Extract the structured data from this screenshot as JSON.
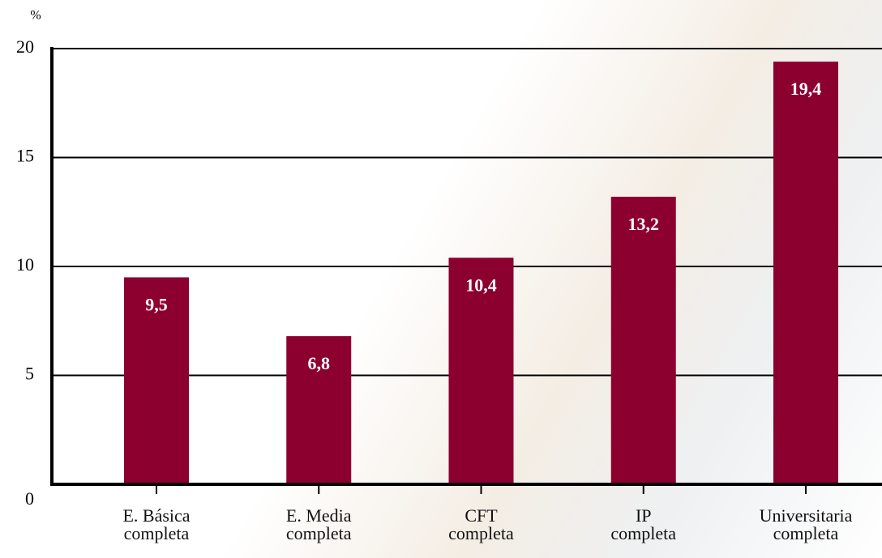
{
  "chart_data": {
    "type": "bar",
    "y_label": "%",
    "categories": [
      "E. Básica\ncompleta",
      "E. Media\ncompleta",
      "CFT\ncompleta",
      "IP\ncompleta",
      "Universitaria\ncompleta"
    ],
    "values": [
      9.5,
      6.8,
      10.4,
      13.2,
      19.4
    ],
    "value_labels": [
      "9,5",
      "6,8",
      "10,4",
      "13,2",
      "19,4"
    ],
    "color": "#8c0030",
    "ylim": [
      0,
      20
    ],
    "yticks": [
      0,
      5,
      10,
      15,
      20
    ],
    "grid": true
  }
}
